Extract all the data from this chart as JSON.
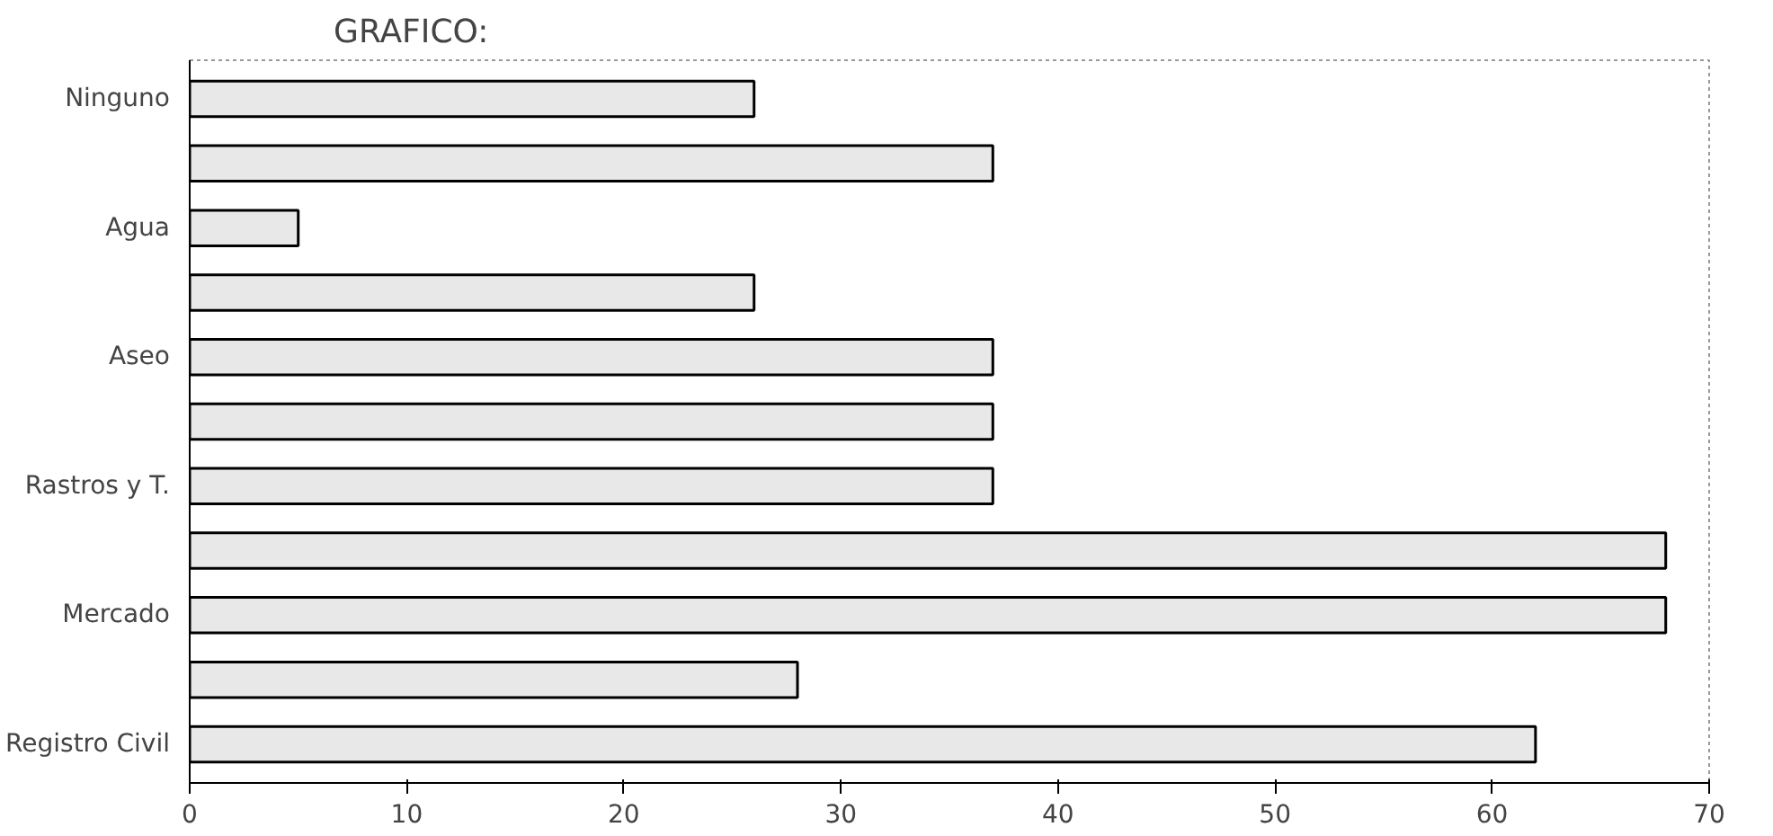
{
  "chart_data": {
    "type": "bar",
    "orientation": "horizontal",
    "title": "GRAFICO:",
    "categories": [
      "Ninguno",
      null,
      "Agua",
      null,
      "Aseo",
      null,
      "Rastros y T.",
      null,
      "Mercado",
      null,
      "Registro Civil"
    ],
    "values": [
      26,
      37,
      5,
      26,
      37,
      37,
      37,
      68,
      68,
      28,
      62
    ],
    "color": "#e8e8e8",
    "xlim": [
      0,
      70
    ],
    "xticks": [
      0,
      10,
      20,
      30,
      40,
      50,
      60,
      70
    ],
    "grid": false
  }
}
